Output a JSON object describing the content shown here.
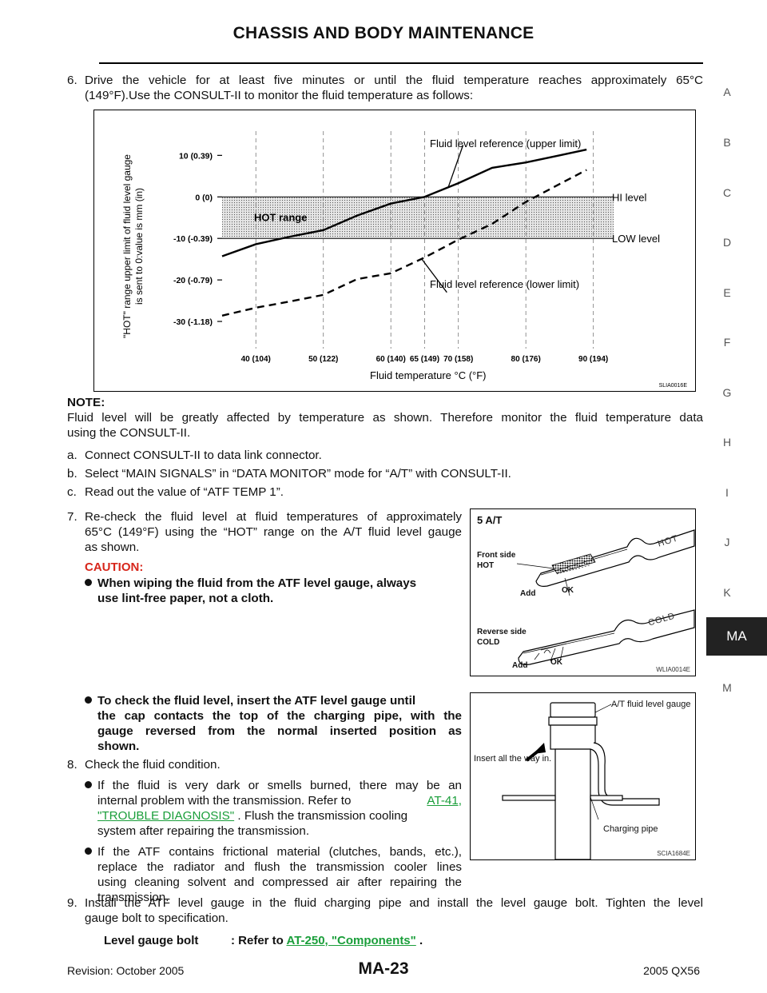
{
  "header": {
    "title": "CHASSIS AND BODY MAINTENANCE"
  },
  "side_index": [
    "A",
    "B",
    "C",
    "D",
    "E",
    "F",
    "G",
    "H",
    "I",
    "J",
    "K",
    "MA",
    "M"
  ],
  "step6": {
    "num": "6.",
    "line1": "Drive the vehicle for at least five minutes or until the fluid temperature reaches approximately 65°C",
    "line2": "(149°F).Use the CONSULT-II to monitor the fluid temperature as follows:"
  },
  "chart_data": {
    "type": "line",
    "ylabel_line1": "\"HOT\" range upper limit of fluid level gauge",
    "ylabel_line2": "is sent to 0:value is mm (in)",
    "xlabel": "Fluid temperature °C (°F)",
    "y_ticks": [
      "10 (0.39)",
      "0 (0)",
      "-10 (-0.39)",
      "-20 (-0.79)",
      "-30 (-1.18)"
    ],
    "y_tick_values": [
      10,
      0,
      -10,
      -20,
      -30
    ],
    "x_ticks": [
      "40 (104)",
      "50 (122)",
      "60 (140)",
      "65 (149)",
      "70 (158)",
      "80 (176)",
      "90 (194)"
    ],
    "x_tick_values": [
      40,
      50,
      60,
      65,
      70,
      80,
      90
    ],
    "xlim": [
      35,
      93
    ],
    "ylim": [
      -35,
      17
    ],
    "hot_range": {
      "label": "HOT range",
      "top": 0,
      "bottom": -10
    },
    "level_labels": {
      "hi": "HI level",
      "low": "LOW level"
    },
    "series": [
      {
        "name": "Fluid level reference (upper limit)",
        "style": "solid",
        "x": [
          35,
          40,
          45,
          50,
          55,
          60,
          65,
          70,
          75,
          80,
          85,
          89
        ],
        "y": [
          -14.3,
          -11.4,
          -9.6,
          -8.0,
          -4.5,
          -1.6,
          0,
          3.3,
          7.0,
          8.3,
          10.0,
          11.4
        ]
      },
      {
        "name": "Fluid level reference (lower limit)",
        "style": "dashed",
        "x": [
          35,
          40,
          45,
          50,
          55,
          60,
          65,
          70,
          75,
          80,
          85,
          89
        ],
        "y": [
          -28.6,
          -26.7,
          -25.2,
          -23.6,
          -19.8,
          -18.4,
          -14.6,
          -10.3,
          -6.5,
          -1.2,
          3.1,
          6.5
        ]
      }
    ],
    "figure_id": "SLIA0016E"
  },
  "note": {
    "heading": "NOTE:",
    "line1": "Fluid level will be greatly affected by temperature as shown. Therefore monitor the fluid temperature data",
    "line2": "using the CONSULT-II."
  },
  "sub_steps": [
    {
      "letter": "a.",
      "text": "Connect CONSULT-II to data link connector."
    },
    {
      "letter": "b.",
      "text": "Select “MAIN SIGNALS” in “DATA MONITOR” mode for “A/T” with CONSULT-II."
    },
    {
      "letter": "c.",
      "text": "Read out the value of “ATF TEMP 1”."
    }
  ],
  "step7": {
    "num": "7.",
    "lines": [
      "Re-check the fluid level at fluid temperatures of approximately",
      "65°C (149°F) using the “HOT” range on the A/T fluid level gauge",
      "as shown."
    ],
    "caution": "CAUTION:",
    "bullet_lines": [
      "When wiping the fluid from the ATF level gauge, always",
      "use lint-free paper, not a cloth."
    ]
  },
  "fig2": {
    "title": "5 A/T",
    "front_side": "Front side",
    "hot": "HOT",
    "add": "Add",
    "ok": "OK",
    "reverse_side": "Reverse side",
    "cold": "COLD",
    "gauge_hot": "HOT",
    "gauge_cold": "COLD",
    "figure_id": "WLIA0014E"
  },
  "bullet_check": {
    "lines": [
      "To check the fluid level, insert the ATF level gauge until",
      "the cap contacts the top of the charging pipe, with the",
      "gauge reversed from the normal inserted position as",
      "shown."
    ]
  },
  "step8": {
    "num": "8.",
    "text": "Check the fluid condition.",
    "b1_l1": "If the fluid is very dark or smells burned, there may be an",
    "b1_l2_pre": "internal problem with the transmission. Refer to",
    "b1_link1": "AT-41,",
    "b1_link2": "\"TROUBLE DIAGNOSIS\"",
    "b1_l3_post": ". Flush the transmission cooling",
    "b1_l4": "system after repairing the transmission.",
    "b2_lines": [
      "If the ATF contains frictional material (clutches, bands, etc.),",
      "replace the radiator and flush the transmission cooler lines",
      "using cleaning solvent and compressed air after repairing the",
      "transmission."
    ]
  },
  "fig3": {
    "gauge_label": "A/T fluid level gauge",
    "insert_label": "Insert all the way in.",
    "pipe_label": "Charging pipe",
    "figure_id": "SCIA1684E"
  },
  "step9": {
    "num": "9.",
    "line1": "Install the ATF level gauge in the fluid charging pipe and install the level gauge bolt. Tighten the level",
    "line2": "gauge bolt to specification."
  },
  "spec": {
    "label": "Level gauge bolt",
    "colon": ": Refer to",
    "link": "AT-250, \"Components\"",
    "end": "."
  },
  "footer": {
    "revision": "Revision: October 2005",
    "page": "MA-23",
    "model": "2005 QX56"
  }
}
